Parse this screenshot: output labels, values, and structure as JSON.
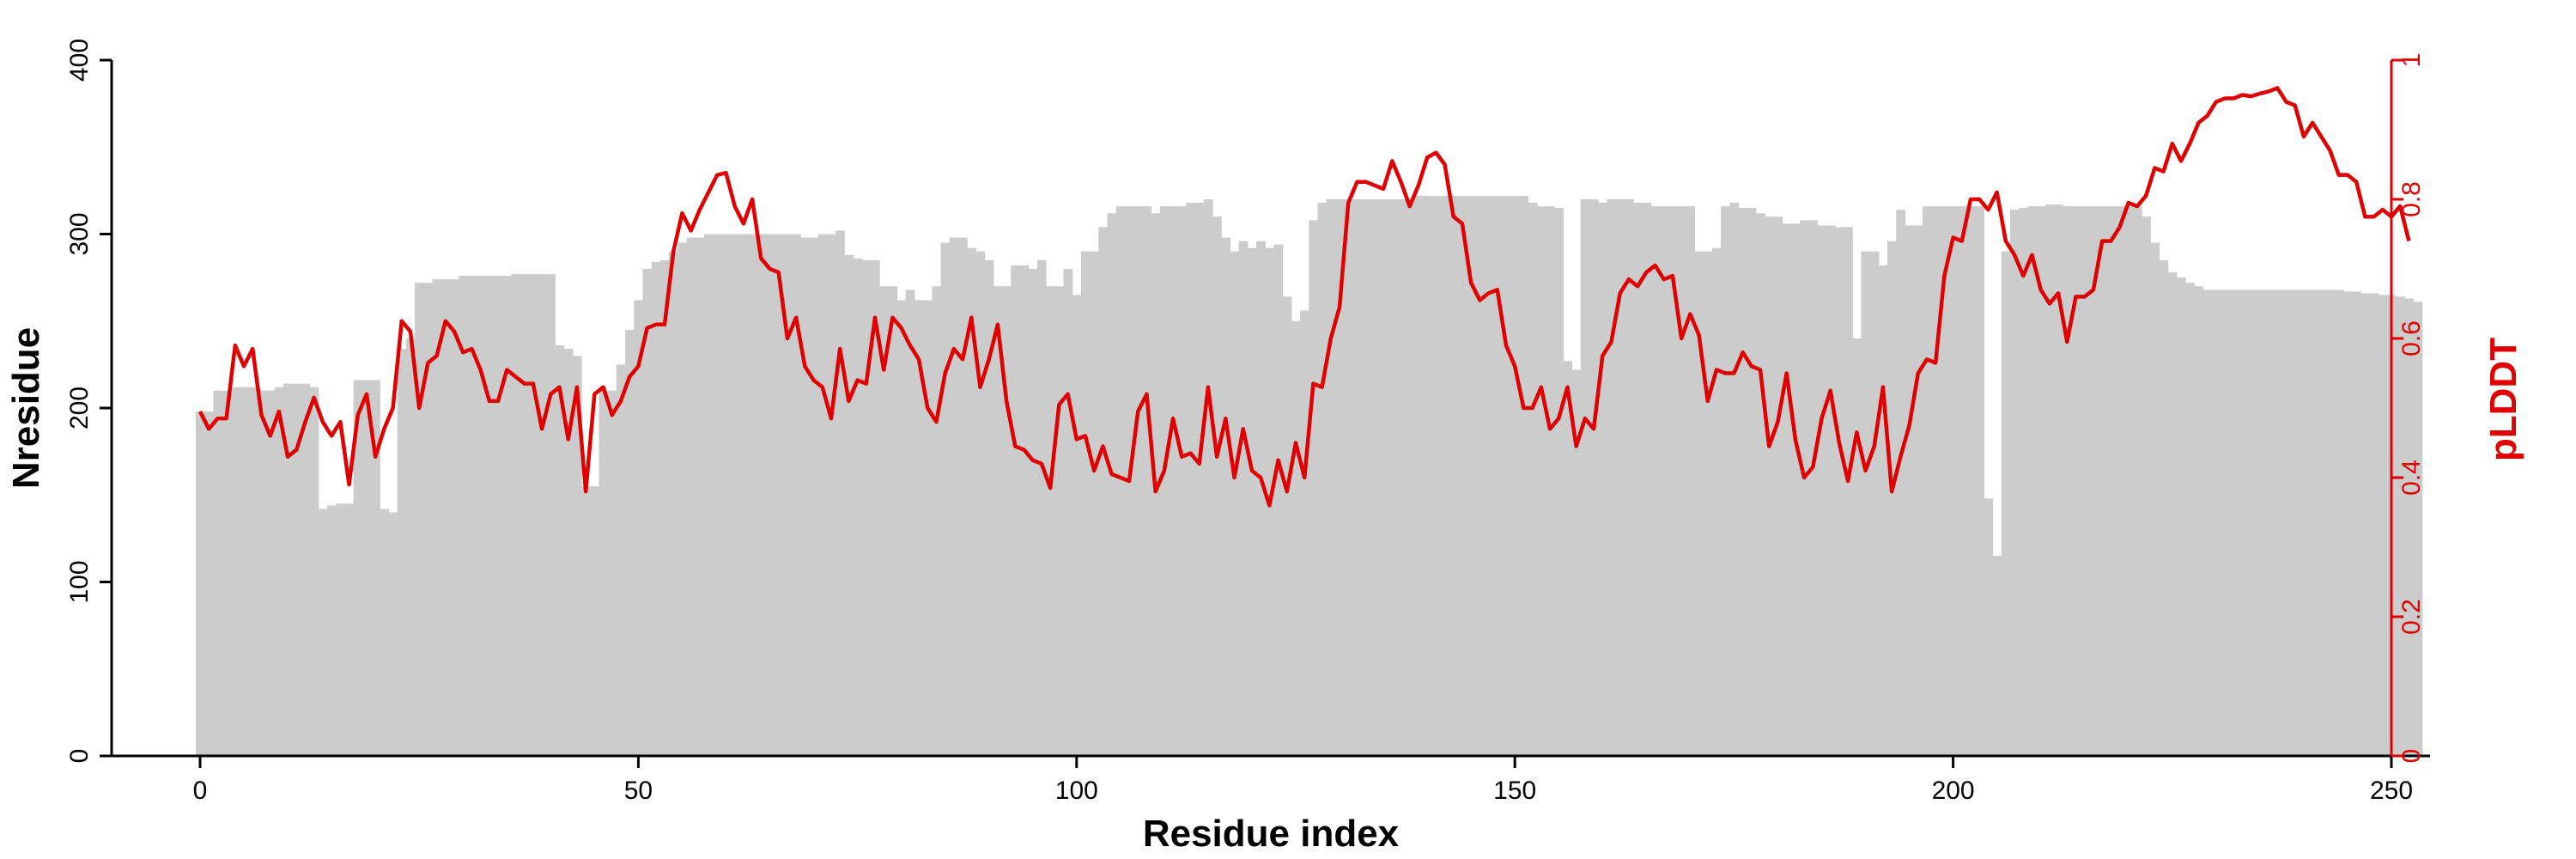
{
  "chart_data": {
    "type": "bar+line",
    "x_axis": {
      "label": "Residue index",
      "range": [
        -10,
        262
      ],
      "ticks": [
        0,
        50,
        100,
        150,
        200,
        250
      ],
      "tick_labels": [
        "0",
        "50",
        "100",
        "150",
        "200",
        "250"
      ]
    },
    "y_left": {
      "label": "Nresidue",
      "range": [
        0,
        400
      ],
      "ticks": [
        0,
        100,
        200,
        300,
        400
      ],
      "tick_labels": [
        "0",
        "100",
        "200",
        "300",
        "400"
      ]
    },
    "y_right": {
      "label": "pLDDT",
      "range": [
        0,
        1
      ],
      "ticks": [
        0,
        0.2,
        0.4,
        0.6,
        0.8,
        1
      ],
      "tick_labels": [
        "0",
        "0.2",
        "0.4",
        "0.6",
        "0.8",
        "1"
      ],
      "color": "#e00000"
    },
    "bar_color": "#cccccc",
    "line_color": "#e00000",
    "grid": false,
    "bars": {
      "x_start": 0,
      "values": [
        198,
        198,
        210,
        210,
        212,
        212,
        212,
        210,
        210,
        212,
        214,
        214,
        214,
        212,
        142,
        144,
        145,
        145,
        216,
        216,
        216,
        142,
        140,
        234,
        240,
        272,
        272,
        274,
        274,
        274,
        276,
        276,
        276,
        276,
        276,
        276,
        277,
        277,
        277,
        277,
        277,
        236,
        234,
        230,
        155,
        155,
        210,
        210,
        225,
        245,
        262,
        280,
        284,
        285,
        290,
        295,
        298,
        298,
        300,
        300,
        300,
        300,
        300,
        300,
        300,
        300,
        300,
        300,
        300,
        298,
        298,
        300,
        300,
        302,
        288,
        286,
        285,
        285,
        270,
        270,
        262,
        268,
        262,
        262,
        270,
        295,
        298,
        298,
        292,
        290,
        285,
        270,
        270,
        282,
        282,
        280,
        285,
        270,
        270,
        280,
        265,
        290,
        290,
        304,
        312,
        316,
        316,
        316,
        316,
        312,
        316,
        316,
        316,
        318,
        318,
        320,
        310,
        298,
        290,
        296,
        292,
        296,
        292,
        294,
        264,
        250,
        256,
        308,
        318,
        320,
        320,
        320,
        320,
        320,
        320,
        320,
        320,
        320,
        320,
        322,
        322,
        322,
        322,
        322,
        322,
        322,
        322,
        322,
        322,
        322,
        322,
        322,
        318,
        316,
        316,
        315,
        227,
        222,
        320,
        320,
        318,
        320,
        320,
        320,
        318,
        318,
        316,
        316,
        316,
        316,
        316,
        290,
        290,
        292,
        316,
        318,
        315,
        315,
        312,
        310,
        310,
        306,
        306,
        308,
        308,
        305,
        305,
        304,
        304,
        240,
        290,
        290,
        282,
        296,
        314,
        305,
        305,
        316,
        316,
        316,
        316,
        316,
        316,
        316,
        148,
        115,
        290,
        314,
        315,
        316,
        316,
        317,
        317,
        316,
        316,
        316,
        316,
        316,
        316,
        316,
        316,
        316,
        310,
        295,
        285,
        278,
        275,
        272,
        270,
        268,
        268,
        268,
        268,
        268,
        268,
        268,
        268,
        268,
        268,
        268,
        268,
        268,
        268,
        268,
        268,
        267,
        267,
        266,
        266,
        265,
        265,
        264,
        263,
        261
      ]
    },
    "line": {
      "x_start": 0,
      "values": [
        0.495,
        0.47,
        0.485,
        0.485,
        0.59,
        0.56,
        0.585,
        0.49,
        0.46,
        0.495,
        0.43,
        0.44,
        0.48,
        0.515,
        0.48,
        0.46,
        0.48,
        0.39,
        0.49,
        0.52,
        0.43,
        0.47,
        0.5,
        0.625,
        0.61,
        0.5,
        0.565,
        0.575,
        0.625,
        0.61,
        0.58,
        0.585,
        0.555,
        0.51,
        0.51,
        0.555,
        0.545,
        0.535,
        0.535,
        0.47,
        0.52,
        0.53,
        0.455,
        0.53,
        0.38,
        0.52,
        0.53,
        0.49,
        0.51,
        0.545,
        0.56,
        0.615,
        0.62,
        0.62,
        0.725,
        0.78,
        0.755,
        0.785,
        0.81,
        0.835,
        0.838,
        0.79,
        0.765,
        0.8,
        0.715,
        0.7,
        0.695,
        0.6,
        0.63,
        0.56,
        0.54,
        0.53,
        0.485,
        0.585,
        0.51,
        0.54,
        0.535,
        0.63,
        0.555,
        0.63,
        0.615,
        0.59,
        0.57,
        0.5,
        0.48,
        0.55,
        0.585,
        0.57,
        0.63,
        0.53,
        0.57,
        0.62,
        0.51,
        0.445,
        0.44,
        0.425,
        0.42,
        0.385,
        0.505,
        0.52,
        0.455,
        0.46,
        0.41,
        0.445,
        0.405,
        0.4,
        0.395,
        0.495,
        0.52,
        0.38,
        0.41,
        0.485,
        0.43,
        0.435,
        0.42,
        0.53,
        0.43,
        0.485,
        0.4,
        0.47,
        0.41,
        0.4,
        0.36,
        0.425,
        0.38,
        0.45,
        0.4,
        0.535,
        0.53,
        0.6,
        0.645,
        0.795,
        0.825,
        0.825,
        0.82,
        0.815,
        0.855,
        0.825,
        0.79,
        0.82,
        0.86,
        0.867,
        0.85,
        0.775,
        0.765,
        0.68,
        0.655,
        0.665,
        0.67,
        0.59,
        0.56,
        0.5,
        0.5,
        0.53,
        0.47,
        0.485,
        0.53,
        0.445,
        0.485,
        0.47,
        0.575,
        0.595,
        0.665,
        0.685,
        0.675,
        0.695,
        0.705,
        0.685,
        0.69,
        0.6,
        0.635,
        0.605,
        0.51,
        0.555,
        0.55,
        0.55,
        0.58,
        0.56,
        0.555,
        0.445,
        0.48,
        0.55,
        0.455,
        0.4,
        0.415,
        0.485,
        0.525,
        0.45,
        0.395,
        0.465,
        0.41,
        0.445,
        0.53,
        0.38,
        0.43,
        0.475,
        0.55,
        0.57,
        0.565,
        0.69,
        0.745,
        0.74,
        0.8,
        0.8,
        0.785,
        0.81,
        0.74,
        0.72,
        0.69,
        0.72,
        0.67,
        0.65,
        0.665,
        0.595,
        0.66,
        0.66,
        0.67,
        0.74,
        0.74,
        0.76,
        0.795,
        0.79,
        0.805,
        0.845,
        0.84,
        0.88,
        0.855,
        0.88,
        0.91,
        0.92,
        0.94,
        0.945,
        0.945,
        0.95,
        0.948,
        0.952,
        0.955,
        0.96,
        0.94,
        0.935,
        0.89,
        0.91,
        0.89,
        0.87,
        0.835,
        0.835,
        0.825,
        0.775,
        0.775,
        0.785,
        0.775,
        0.79,
        0.74
      ]
    }
  }
}
